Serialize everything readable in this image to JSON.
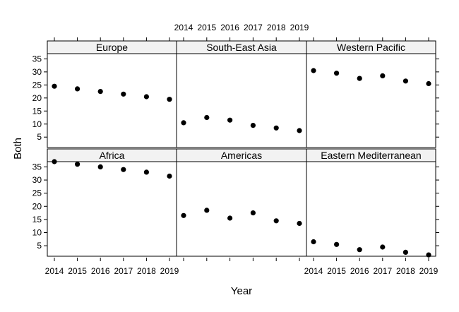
{
  "chart_data": {
    "type": "scatter",
    "layout": "lattice 3 columns x 2 rows",
    "xlabel": "Year",
    "ylabel": "Both",
    "x": [
      2014,
      2015,
      2016,
      2017,
      2018,
      2019
    ],
    "ylim": [
      1,
      37
    ],
    "yticks": [
      5,
      10,
      15,
      20,
      25,
      30,
      35
    ],
    "panels": [
      {
        "name": "Europe",
        "values": [
          24.5,
          23.5,
          22.5,
          21.5,
          20.5,
          19.5
        ]
      },
      {
        "name": "South-East Asia",
        "values": [
          10.5,
          12.5,
          11.5,
          9.5,
          8.5,
          7.5
        ]
      },
      {
        "name": "Western Pacific",
        "values": [
          30.5,
          29.5,
          27.5,
          28.5,
          26.5,
          25.5
        ]
      },
      {
        "name": "Africa",
        "values": [
          37,
          36,
          35,
          34,
          33,
          31.5
        ]
      },
      {
        "name": "Americas",
        "values": [
          16.5,
          18.5,
          15.5,
          17.5,
          14.5,
          13.5
        ]
      },
      {
        "name": "Eastern Mediterranean",
        "values": [
          6.5,
          5.5,
          3.5,
          4.5,
          2.5,
          1.5
        ]
      }
    ],
    "marker_color": "#000000",
    "strip_color": "#f2f2f2"
  }
}
